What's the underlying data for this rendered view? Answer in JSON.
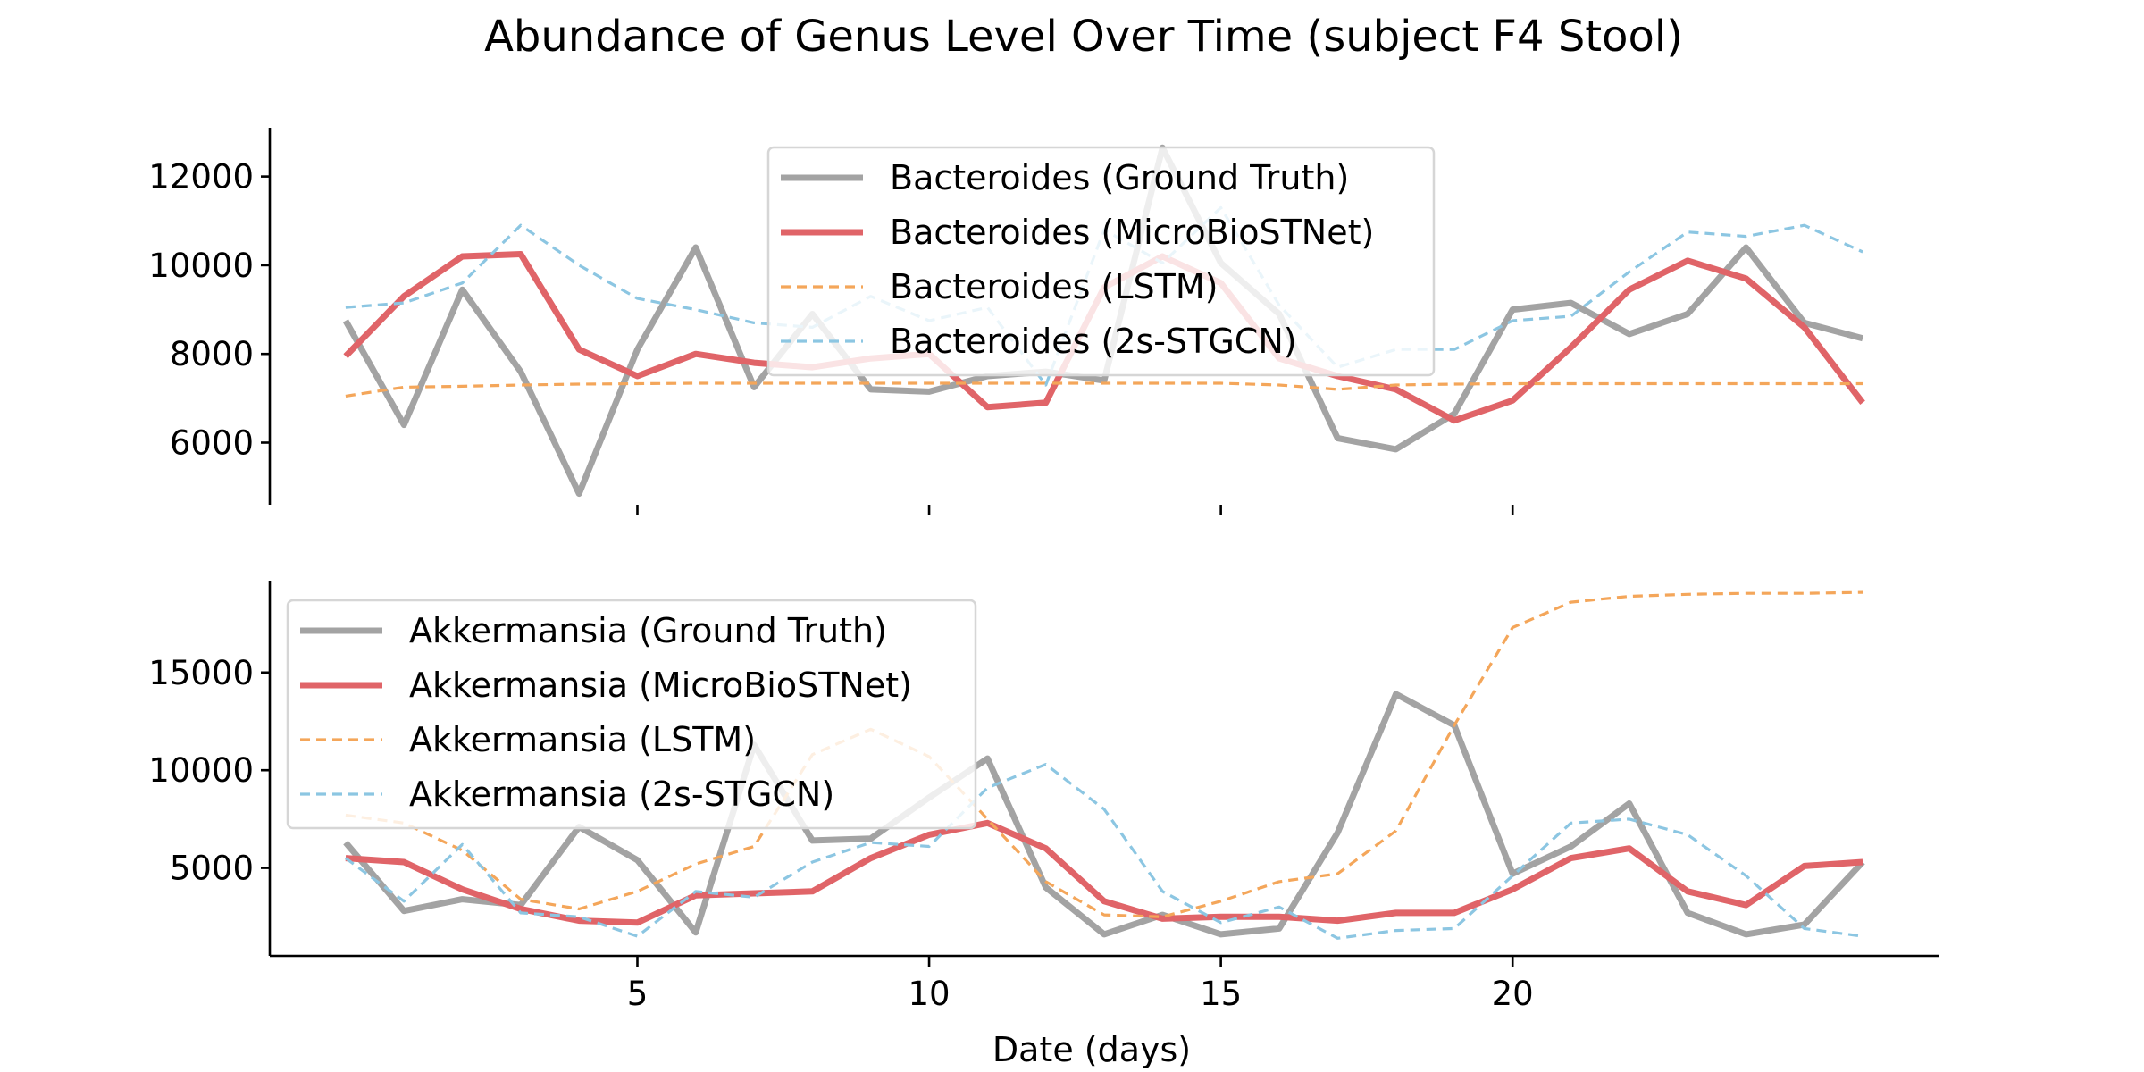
{
  "chart_data": {
    "title": "Abundance of Genus Level Over Time (subject F4 Stool)",
    "xlabel": "Date (days)",
    "x": [
      0,
      1,
      2,
      3,
      4,
      5,
      6,
      7,
      8,
      9,
      10,
      11,
      12,
      13,
      14,
      15,
      16,
      17,
      18,
      19,
      20,
      21,
      22,
      23,
      24,
      25,
      26
    ],
    "xticks": [
      5,
      10,
      15,
      20
    ],
    "xlim": [
      -1.3,
      27.3
    ],
    "colors": {
      "ground_truth": "#a3a3a3",
      "microbiostnet": "#e06468",
      "lstm": "#f4a65a",
      "stgcn": "#8cc6e2"
    },
    "panels": [
      {
        "type": "line",
        "genus": "Bacteroides",
        "ylim": [
          4600,
          13100
        ],
        "yticks": [
          6000,
          8000,
          10000,
          12000
        ],
        "legend_position": "top-center",
        "series": [
          {
            "name": "Bacteroides (Ground Truth)",
            "style": "ground_truth",
            "values": [
              8750,
              6400,
              9450,
              7600,
              4850,
              8100,
              10400,
              7250,
              8900,
              7200,
              7150,
              7500,
              7600,
              7400,
              12650,
              10050,
              8900,
              6100,
              5850,
              6650,
              9000,
              9150,
              8450,
              8900,
              10400,
              8700,
              8350
            ]
          },
          {
            "name": "Bacteroides (MicroBioSTNet)",
            "style": "microbiostnet",
            "values": [
              7950,
              9300,
              10200,
              10250,
              8100,
              7500,
              8000,
              7800,
              7700,
              7900,
              8000,
              6800,
              6900,
              9500,
              10200,
              9600,
              7900,
              7500,
              7200,
              6500,
              6950,
              8150,
              9450,
              10100,
              9700,
              8600,
              6900
            ]
          },
          {
            "name": "Bacteroides (LSTM)",
            "style": "lstm",
            "values": [
              7050,
              7250,
              7270,
              7300,
              7320,
              7330,
              7340,
              7340,
              7340,
              7340,
              7340,
              7340,
              7340,
              7340,
              7340,
              7340,
              7300,
              7200,
              7300,
              7320,
              7330,
              7330,
              7330,
              7330,
              7330,
              7330,
              7330
            ]
          },
          {
            "name": "Bacteroides (2s-STGCN)",
            "style": "stgcn",
            "values": [
              9050,
              9150,
              9600,
              10900,
              10000,
              9250,
              9000,
              8700,
              8600,
              9300,
              8750,
              9050,
              7300,
              10800,
              10050,
              11300,
              9100,
              7700,
              8100,
              8100,
              8750,
              8850,
              9850,
              10750,
              10650,
              10900,
              10300
            ]
          }
        ]
      },
      {
        "type": "line",
        "genus": "Akkermansia",
        "ylim": [
          500,
          19700
        ],
        "yticks": [
          5000,
          10000,
          15000
        ],
        "legend_position": "upper-left",
        "series": [
          {
            "name": "Akkermansia (Ground Truth)",
            "style": "ground_truth",
            "values": [
              6300,
              2800,
              3400,
              3100,
              7100,
              5400,
              1700,
              11300,
              6400,
              6500,
              8600,
              10600,
              4000,
              1600,
              2600,
              1600,
              1900,
              6800,
              13900,
              12300,
              4700,
              6100,
              8300,
              2700,
              1600,
              2100,
              5300
            ]
          },
          {
            "name": "Akkermansia (MicroBioSTNet)",
            "style": "microbiostnet",
            "values": [
              5500,
              5300,
              3900,
              2900,
              2300,
              2200,
              3600,
              3700,
              3800,
              5500,
              6700,
              7300,
              6000,
              3300,
              2400,
              2500,
              2500,
              2300,
              2700,
              2700,
              3900,
              5500,
              6000,
              3800,
              3100,
              5100,
              5300
            ]
          },
          {
            "name": "Akkermansia (LSTM)",
            "style": "lstm",
            "values": [
              7700,
              7300,
              5900,
              3400,
              2900,
              3800,
              5200,
              6100,
              10800,
              12100,
              10700,
              7500,
              4300,
              2600,
              2500,
              3300,
              4300,
              4700,
              6900,
              12300,
              17300,
              18600,
              18900,
              19000,
              19050,
              19050,
              19100
            ]
          },
          {
            "name": "Akkermansia (2s-STGCN)",
            "style": "stgcn",
            "values": [
              5500,
              3300,
              6200,
              2700,
              2500,
              1500,
              3800,
              3500,
              5300,
              6300,
              6100,
              9100,
              10300,
              8000,
              3800,
              2200,
              3000,
              1400,
              1800,
              1900,
              4600,
              7300,
              7500,
              6700,
              4600,
              1900,
              1500
            ]
          }
        ]
      }
    ]
  }
}
